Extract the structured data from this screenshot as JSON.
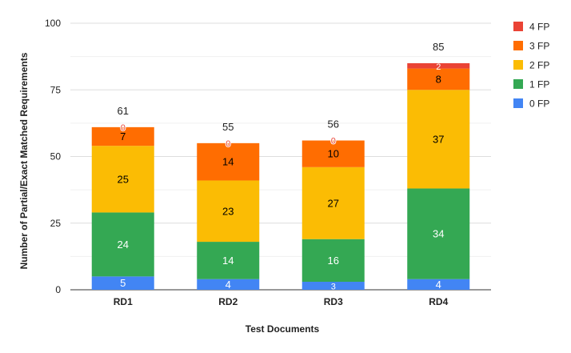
{
  "chart_data": {
    "type": "bar",
    "stacked": true,
    "title": "",
    "xlabel": "Test Documents",
    "ylabel": "Number of Partial/Exact Matched Requirements",
    "ylim": [
      0,
      100
    ],
    "yticks": [
      "0",
      "25",
      "50",
      "75",
      "100"
    ],
    "categories": [
      "RD1",
      "RD2",
      "RD3",
      "RD4"
    ],
    "totals": [
      "61",
      "55",
      "56",
      "85"
    ],
    "series": [
      {
        "name": "0 FP",
        "color": "#4285f4",
        "values": [
          5,
          4,
          3,
          4
        ],
        "labels": [
          "5",
          "4",
          "3",
          "4"
        ]
      },
      {
        "name": "1 FP",
        "color": "#34a853",
        "values": [
          24,
          14,
          16,
          34
        ],
        "labels": [
          "24",
          "14",
          "16",
          "34"
        ]
      },
      {
        "name": "2 FP",
        "color": "#fbbc04",
        "values": [
          25,
          23,
          27,
          37
        ],
        "labels": [
          "25",
          "23",
          "27",
          "37"
        ]
      },
      {
        "name": "3 FP",
        "color": "#ff6d01",
        "values": [
          7,
          14,
          10,
          8
        ],
        "labels": [
          "7",
          "14",
          "10",
          "8"
        ]
      },
      {
        "name": "4 FP",
        "color": "#ea4335",
        "values": [
          0,
          0,
          0,
          2
        ],
        "labels": [
          "0",
          "0",
          "0",
          "2"
        ]
      }
    ],
    "legend_position": "right",
    "grid": true
  }
}
